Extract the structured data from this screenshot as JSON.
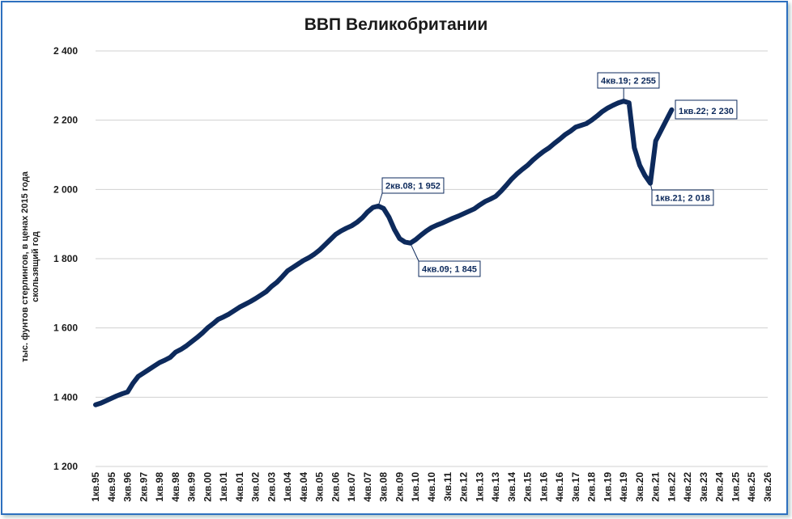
{
  "chart_data": {
    "type": "line",
    "title": "ВВП Великобритании",
    "ylabel": [
      "тыс. фунтов стерлингов, в ценах 2015 года",
      "скользящий год"
    ],
    "categories": [
      "1кв.95",
      null,
      null,
      "4кв.95",
      null,
      null,
      "3кв.96",
      null,
      null,
      "2кв.97",
      null,
      null,
      "1кв.98",
      null,
      null,
      "4кв.98",
      null,
      null,
      "3кв.99",
      null,
      null,
      "2кв.00",
      null,
      null,
      "1кв.01",
      null,
      null,
      "4кв.01",
      null,
      null,
      "3кв.02",
      null,
      null,
      "2кв.03",
      null,
      null,
      "1кв.04",
      null,
      null,
      "4кв.04",
      null,
      null,
      "3кв.05",
      null,
      null,
      "2кв.06",
      null,
      null,
      "1кв.07",
      null,
      null,
      "4кв.07",
      null,
      null,
      "3кв.08",
      null,
      null,
      "2кв.09",
      null,
      null,
      "1кв.10",
      null,
      null,
      "4кв.10",
      null,
      null,
      "3кв.11",
      null,
      null,
      "2кв.12",
      null,
      null,
      "1кв.13",
      null,
      null,
      "4кв.13",
      null,
      null,
      "3кв.14",
      null,
      null,
      "2кв.15",
      null,
      null,
      "1кв.16",
      null,
      null,
      "4кв.16",
      null,
      null,
      "3кв.17",
      null,
      null,
      "2кв.18",
      null,
      null,
      "1кв.19",
      null,
      null,
      "4кв.19",
      null,
      null,
      "3кв.20",
      null,
      null,
      "2кв.21",
      null,
      null,
      "1кв.22",
      null,
      null,
      "4кв.22",
      null,
      null,
      "3кв.23",
      null,
      null,
      "2кв.24",
      null,
      null,
      "1кв.25",
      null,
      null,
      "4кв.25",
      null,
      null,
      "3кв.26"
    ],
    "series": [
      {
        "name": "ВВП",
        "color": "#0d2a5c",
        "values": [
          1378,
          1383,
          1390,
          1397,
          1404,
          1410,
          1415,
          1440,
          1460,
          1470,
          1480,
          1490,
          1500,
          1507,
          1515,
          1530,
          1538,
          1548,
          1560,
          1572,
          1585,
          1600,
          1612,
          1625,
          1632,
          1640,
          1650,
          1660,
          1668,
          1676,
          1685,
          1695,
          1705,
          1720,
          1732,
          1748,
          1765,
          1775,
          1785,
          1795,
          1803,
          1813,
          1825,
          1840,
          1855,
          1870,
          1880,
          1888,
          1895,
          1905,
          1918,
          1935,
          1948,
          1952,
          1945,
          1920,
          1885,
          1858,
          1848,
          1845,
          1855,
          1868,
          1880,
          1890,
          1897,
          1903,
          1910,
          1917,
          1923,
          1930,
          1937,
          1944,
          1955,
          1965,
          1972,
          1980,
          1995,
          2012,
          2030,
          2045,
          2058,
          2070,
          2085,
          2098,
          2110,
          2120,
          2133,
          2145,
          2158,
          2168,
          2180,
          2185,
          2190,
          2200,
          2212,
          2225,
          2235,
          2243,
          2250,
          2255,
          2250,
          2120,
          2070,
          2040,
          2018,
          2140,
          2170,
          2200,
          2230,
          null,
          null,
          null,
          null,
          null,
          null,
          null,
          null,
          null,
          null,
          null,
          null,
          null,
          null,
          null,
          null,
          null,
          null
        ]
      }
    ],
    "ylim": [
      1200,
      2400
    ],
    "yticks": [
      {
        "value": 1200,
        "label": "1 200"
      },
      {
        "value": 1400,
        "label": "1 400"
      },
      {
        "value": 1600,
        "label": "1 600"
      },
      {
        "value": 1800,
        "label": "1 800"
      },
      {
        "value": 2000,
        "label": "2 000"
      },
      {
        "value": 2200,
        "label": "2 200"
      },
      {
        "value": 2400,
        "label": "2 400"
      }
    ],
    "grid": true,
    "annotations": [
      "2кв.08;  1 952",
      "4кв.09;  1 845",
      "4кв.19;  2 255",
      "1кв.21;  2 018",
      "1кв.22;  2 230"
    ]
  }
}
